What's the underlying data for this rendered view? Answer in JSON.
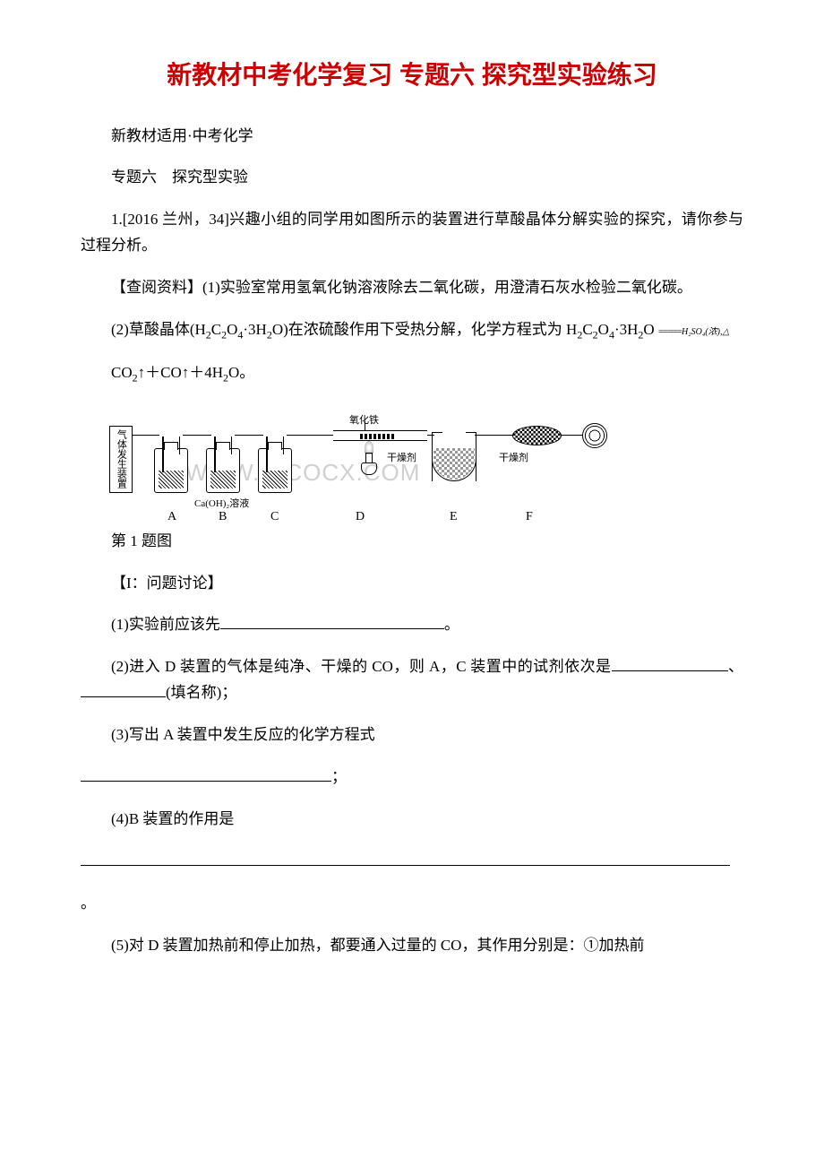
{
  "title": "新教材中考化学复习 专题六 探究型实验练习",
  "subtitle": "新教材适用·中考化学",
  "section": "专题六　探究型实验",
  "q1_intro": "1.[2016 兰州，34]兴趣小组的同学用如图所示的装置进行草酸晶体分解实验的探究，请你参与过程分析。",
  "lookup_head": "【查阅资料】",
  "lookup_1": "(1)实验室常用氢氧化钠溶液除去二氧化碳，用澄清石灰水检验二氧化碳。",
  "lookup_2_a": "(2)草酸晶体(H",
  "lookup_2_b": "C",
  "lookup_2_c": "O",
  "lookup_2_d": "·3H",
  "lookup_2_e": "O)在浓硫酸作用下受热分解，化学方程式为 H",
  "lookup_2_f": "C",
  "lookup_2_g": "O",
  "lookup_2_h": "·3H",
  "lookup_2_i": "O",
  "equals": "=====",
  "condition": "H₂SO₄(浓),△",
  "products_a": "CO",
  "products_b": "↑＋CO↑＋4H",
  "products_c": "O。",
  "sub2": "2",
  "sub4": "4",
  "diagram": {
    "gas_box": "气体发生装置",
    "oxide": "氧化铁",
    "caoh": "Ca(OH)₂溶液",
    "dryer": "干燥剂",
    "A": "A",
    "B": "B",
    "C": "C",
    "D": "D",
    "E": "E",
    "F": "F",
    "watermark": "WWW.CICOCX.COM"
  },
  "fig_caption": "第 1 题图",
  "discuss_head": "【I：问题讨论】",
  "q_1": "(1)实验前应该先",
  "period": "。",
  "q_2a": "(2)进入 D 装置的气体是纯净、干燥的 CO，则 A，C 装置中的试剂依次是",
  "q_2b": "、",
  "q_2c": "(填名称)；",
  "q_3": "(3)写出 A 装置中发生反应的化学方程式",
  "semicolon": "；",
  "q_4": "(4)B 装置的作用是",
  "q_5": "(5)对 D 装置加热前和停止加热，都要通入过量的 CO，其作用分别是：①加热前"
}
